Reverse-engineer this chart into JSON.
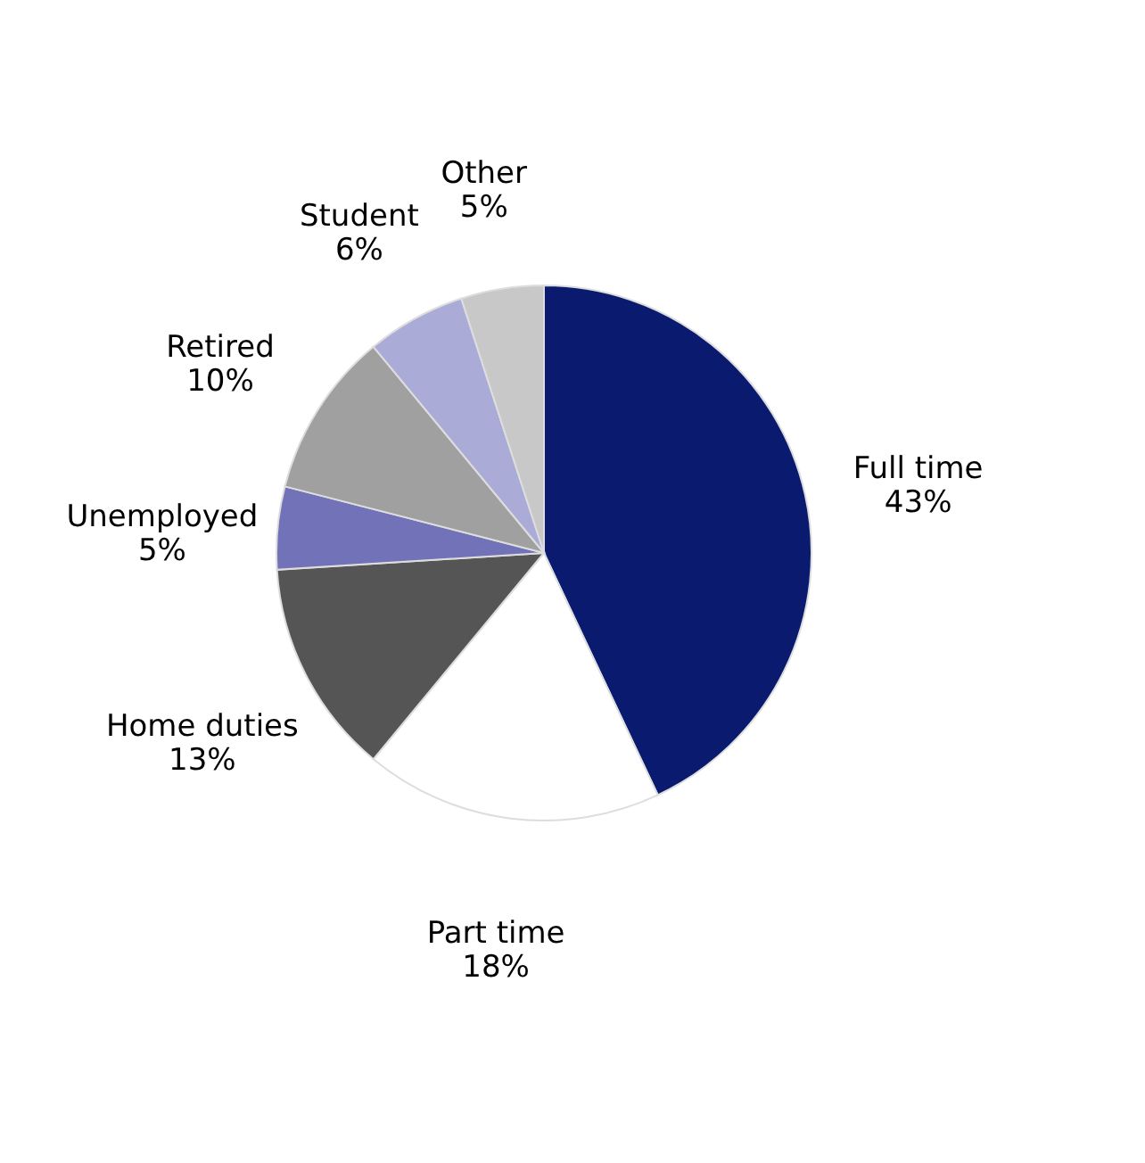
{
  "chart_data": {
    "type": "pie",
    "categories": [
      "Full time",
      "Part time",
      "Home duties",
      "Unemployed",
      "Retired",
      "Student",
      "Other"
    ],
    "values": [
      43,
      18,
      13,
      5,
      10,
      6,
      5
    ],
    "colors": [
      "#0a1a6e",
      "#ffffff",
      "#555555",
      "#7272b8",
      "#a0a0a0",
      "#ababd8",
      "#c8c8c8"
    ],
    "value_labels": [
      "43%",
      "18%",
      "13%",
      "5%",
      "10%",
      "6%",
      "5%"
    ],
    "legend": false
  }
}
